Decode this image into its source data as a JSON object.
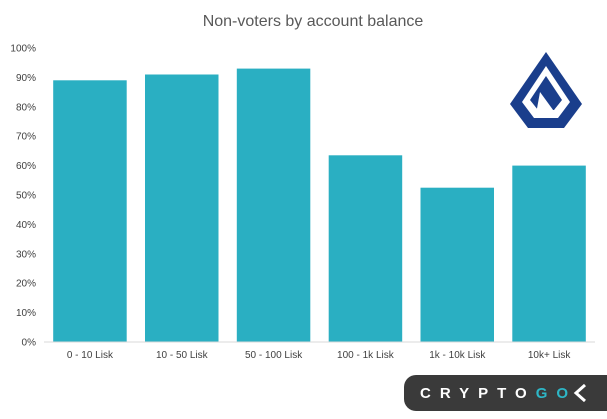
{
  "chart_data": {
    "type": "bar",
    "title": "Non-voters by account balance",
    "categories": [
      "0 - 10 Lisk",
      "10 - 50 Lisk",
      "50 - 100 Lisk",
      "100 - 1k Lisk",
      "1k - 10k Lisk",
      "10k+ Lisk"
    ],
    "values": [
      89,
      91,
      93,
      63.5,
      52.5,
      60
    ],
    "ylim": [
      0,
      100
    ],
    "yticks": [
      "0%",
      "10%",
      "20%",
      "30%",
      "40%",
      "50%",
      "60%",
      "70%",
      "80%",
      "90%",
      "100%"
    ],
    "grid": false,
    "bar_color": "#2aafc2"
  },
  "logo": {
    "icon": "lisk-logo-icon",
    "color": "#1a3e8c"
  },
  "footer_badge": {
    "text": "CRYPTO",
    "suffix": "GO",
    "icon": "chevron-icon",
    "background": "#3a3a3a",
    "accent": "#2db6c6"
  }
}
